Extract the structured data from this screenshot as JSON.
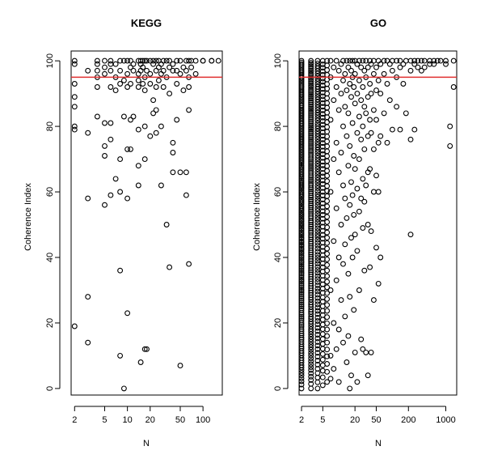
{
  "chart_data": [
    {
      "type": "scatter",
      "title": "KEGG",
      "xlabel": "N",
      "ylabel": "Coherence Index",
      "x_scale": "log",
      "xlim": [
        1.8,
        180
      ],
      "ylim": [
        -2,
        103
      ],
      "x_ticks": [
        2,
        5,
        10,
        20,
        50,
        100
      ],
      "y_ticks": [
        0,
        20,
        40,
        60,
        80,
        100
      ],
      "grid": false,
      "threshold_line": {
        "y": 95,
        "color": "#e03030"
      },
      "points": [
        [
          2,
          100
        ],
        [
          2,
          99
        ],
        [
          2,
          93
        ],
        [
          2,
          89
        ],
        [
          2,
          86
        ],
        [
          2,
          80
        ],
        [
          2,
          79
        ],
        [
          2,
          19
        ],
        [
          3,
          97
        ],
        [
          3,
          78
        ],
        [
          3,
          58
        ],
        [
          3,
          28
        ],
        [
          3,
          14
        ],
        [
          4,
          100
        ],
        [
          4,
          99
        ],
        [
          4,
          97
        ],
        [
          4,
          95
        ],
        [
          4,
          92
        ],
        [
          4,
          83
        ],
        [
          5,
          100
        ],
        [
          5,
          98
        ],
        [
          5,
          96
        ],
        [
          5,
          81
        ],
        [
          5,
          74
        ],
        [
          5,
          71
        ],
        [
          5,
          56
        ],
        [
          6,
          100
        ],
        [
          6,
          99
        ],
        [
          6,
          97
        ],
        [
          6,
          92
        ],
        [
          6,
          81
        ],
        [
          6,
          76
        ],
        [
          6,
          59
        ],
        [
          7,
          99
        ],
        [
          7,
          95
        ],
        [
          7,
          91
        ],
        [
          7,
          64
        ],
        [
          8,
          100
        ],
        [
          8,
          97
        ],
        [
          8,
          93
        ],
        [
          8,
          70
        ],
        [
          8,
          60
        ],
        [
          8,
          36
        ],
        [
          8,
          10
        ],
        [
          9,
          100
        ],
        [
          9,
          94
        ],
        [
          9,
          83
        ],
        [
          9,
          0
        ],
        [
          10,
          100
        ],
        [
          10,
          96
        ],
        [
          10,
          92
        ],
        [
          10,
          73
        ],
        [
          10,
          58
        ],
        [
          10,
          23
        ],
        [
          11,
          100
        ],
        [
          11,
          98
        ],
        [
          11,
          93
        ],
        [
          11,
          82
        ],
        [
          11,
          73
        ],
        [
          12,
          99
        ],
        [
          12,
          97
        ],
        [
          12,
          83
        ],
        [
          14,
          100
        ],
        [
          14,
          96
        ],
        [
          14,
          94
        ],
        [
          14,
          92
        ],
        [
          14,
          79
        ],
        [
          14,
          68
        ],
        [
          14,
          62
        ],
        [
          15,
          100
        ],
        [
          15,
          99
        ],
        [
          15,
          97
        ],
        [
          15,
          8
        ],
        [
          16,
          100
        ],
        [
          16,
          98
        ],
        [
          16,
          93
        ],
        [
          17,
          100
        ],
        [
          17,
          95
        ],
        [
          17,
          91
        ],
        [
          17,
          80
        ],
        [
          17,
          70
        ],
        [
          17,
          12
        ],
        [
          18,
          100
        ],
        [
          18,
          97
        ],
        [
          18,
          12
        ],
        [
          20,
          100
        ],
        [
          20,
          96
        ],
        [
          20,
          93
        ],
        [
          20,
          77
        ],
        [
          22,
          100
        ],
        [
          22,
          99
        ],
        [
          22,
          88
        ],
        [
          22,
          84
        ],
        [
          24,
          100
        ],
        [
          24,
          97
        ],
        [
          24,
          92
        ],
        [
          24,
          85
        ],
        [
          24,
          78
        ],
        [
          26,
          100
        ],
        [
          26,
          98
        ],
        [
          26,
          94
        ],
        [
          28,
          99
        ],
        [
          28,
          96
        ],
        [
          28,
          80
        ],
        [
          28,
          62
        ],
        [
          30,
          100
        ],
        [
          30,
          97
        ],
        [
          30,
          92
        ],
        [
          33,
          100
        ],
        [
          33,
          95
        ],
        [
          33,
          50
        ],
        [
          36,
          100
        ],
        [
          36,
          98
        ],
        [
          36,
          90
        ],
        [
          36,
          37
        ],
        [
          40,
          99
        ],
        [
          40,
          97
        ],
        [
          40,
          75
        ],
        [
          40,
          72
        ],
        [
          40,
          66
        ],
        [
          45,
          100
        ],
        [
          45,
          97
        ],
        [
          45,
          93
        ],
        [
          45,
          82
        ],
        [
          50,
          100
        ],
        [
          50,
          96
        ],
        [
          50,
          66
        ],
        [
          50,
          7
        ],
        [
          55,
          98
        ],
        [
          55,
          91
        ],
        [
          60,
          100
        ],
        [
          60,
          97
        ],
        [
          60,
          66
        ],
        [
          60,
          59
        ],
        [
          65,
          100
        ],
        [
          65,
          95
        ],
        [
          65,
          92
        ],
        [
          65,
          85
        ],
        [
          65,
          38
        ],
        [
          70,
          100
        ],
        [
          70,
          98
        ],
        [
          80,
          100
        ],
        [
          80,
          96
        ],
        [
          100,
          100
        ],
        [
          100,
          100
        ],
        [
          130,
          100
        ],
        [
          130,
          100
        ],
        [
          160,
          100
        ]
      ]
    },
    {
      "type": "scatter",
      "title": "GO",
      "xlabel": "N",
      "ylabel": "Coherence Index",
      "x_scale": "log",
      "xlim": [
        1.8,
        1600
      ],
      "ylim": [
        -2,
        103
      ],
      "x_ticks": [
        2,
        5,
        20,
        50,
        200,
        1000
      ],
      "y_ticks": [
        0,
        20,
        40,
        60,
        80,
        100
      ],
      "grid": false,
      "threshold_line": {
        "y": 95,
        "color": "#e03030"
      },
      "dense_columns": [
        {
          "x": 2,
          "ymin": 0,
          "ymax": 100,
          "count": 180
        },
        {
          "x": 3,
          "ymin": 0,
          "ymax": 100,
          "count": 150
        },
        {
          "x": 4,
          "ymin": 0,
          "ymax": 100,
          "count": 110
        },
        {
          "x": 5,
          "ymin": 1,
          "ymax": 100,
          "count": 80
        },
        {
          "x": 6,
          "ymin": 2,
          "ymax": 100,
          "count": 60
        }
      ],
      "points": [
        [
          7,
          100
        ],
        [
          7,
          95
        ],
        [
          7,
          82
        ],
        [
          7,
          60
        ],
        [
          7,
          30
        ],
        [
          7,
          10
        ],
        [
          7,
          3
        ],
        [
          8,
          98
        ],
        [
          8,
          88
        ],
        [
          8,
          70
        ],
        [
          8,
          45
        ],
        [
          8,
          20
        ],
        [
          8,
          6
        ],
        [
          9,
          100
        ],
        [
          9,
          92
        ],
        [
          9,
          75
        ],
        [
          9,
          55
        ],
        [
          9,
          33
        ],
        [
          9,
          12
        ],
        [
          10,
          97
        ],
        [
          10,
          85
        ],
        [
          10,
          66
        ],
        [
          10,
          40
        ],
        [
          10,
          18
        ],
        [
          10,
          2
        ],
        [
          11,
          99
        ],
        [
          11,
          90
        ],
        [
          11,
          72
        ],
        [
          11,
          50
        ],
        [
          11,
          27
        ],
        [
          12,
          100
        ],
        [
          12,
          94
        ],
        [
          12,
          80
        ],
        [
          12,
          62
        ],
        [
          12,
          38
        ],
        [
          12,
          14
        ],
        [
          13,
          96
        ],
        [
          13,
          86
        ],
        [
          13,
          58
        ],
        [
          13,
          44
        ],
        [
          13,
          22
        ],
        [
          14,
          100
        ],
        [
          14,
          91
        ],
        [
          14,
          77
        ],
        [
          14,
          52
        ],
        [
          14,
          8
        ],
        [
          15,
          98
        ],
        [
          15,
          84
        ],
        [
          15,
          68
        ],
        [
          15,
          35
        ],
        [
          15,
          16
        ],
        [
          16,
          100
        ],
        [
          16,
          93
        ],
        [
          16,
          74
        ],
        [
          16,
          56
        ],
        [
          16,
          28
        ],
        [
          16,
          0
        ],
        [
          17,
          97
        ],
        [
          17,
          89
        ],
        [
          17,
          63
        ],
        [
          17,
          46
        ],
        [
          17,
          4
        ],
        [
          18,
          100
        ],
        [
          18,
          95
        ],
        [
          18,
          81
        ],
        [
          18,
          59
        ],
        [
          18,
          40
        ],
        [
          19,
          92
        ],
        [
          19,
          71
        ],
        [
          19,
          53
        ],
        [
          19,
          24
        ],
        [
          20,
          100
        ],
        [
          20,
          96
        ],
        [
          20,
          87
        ],
        [
          20,
          67
        ],
        [
          20,
          47
        ],
        [
          20,
          11
        ],
        [
          22,
          99
        ],
        [
          22,
          90
        ],
        [
          22,
          78
        ],
        [
          22,
          61
        ],
        [
          22,
          42
        ],
        [
          22,
          2
        ],
        [
          24,
          100
        ],
        [
          24,
          94
        ],
        [
          24,
          83
        ],
        [
          24,
          70
        ],
        [
          24,
          54
        ],
        [
          24,
          30
        ],
        [
          26,
          98
        ],
        [
          26,
          88
        ],
        [
          26,
          76
        ],
        [
          26,
          58
        ],
        [
          26,
          15
        ],
        [
          28,
          100
        ],
        [
          28,
          92
        ],
        [
          28,
          80
        ],
        [
          28,
          64
        ],
        [
          28,
          49
        ],
        [
          28,
          12
        ],
        [
          30,
          97
        ],
        [
          30,
          86
        ],
        [
          30,
          73
        ],
        [
          30,
          57
        ],
        [
          30,
          36
        ],
        [
          32,
          100
        ],
        [
          32,
          95
        ],
        [
          32,
          84
        ],
        [
          32,
          62
        ],
        [
          32,
          11
        ],
        [
          35,
          98
        ],
        [
          35,
          89
        ],
        [
          35,
          77
        ],
        [
          35,
          66
        ],
        [
          35,
          50
        ],
        [
          35,
          4
        ],
        [
          38,
          100
        ],
        [
          38,
          93
        ],
        [
          38,
          82
        ],
        [
          38,
          67
        ],
        [
          38,
          37
        ],
        [
          40,
          99
        ],
        [
          40,
          90
        ],
        [
          40,
          78
        ],
        [
          40,
          48
        ],
        [
          40,
          11
        ],
        [
          45,
          100
        ],
        [
          45,
          96
        ],
        [
          45,
          85
        ],
        [
          45,
          73
        ],
        [
          45,
          60
        ],
        [
          45,
          27
        ],
        [
          50,
          98
        ],
        [
          50,
          91
        ],
        [
          50,
          82
        ],
        [
          50,
          65
        ],
        [
          50,
          43
        ],
        [
          55,
          100
        ],
        [
          55,
          94
        ],
        [
          55,
          75
        ],
        [
          55,
          60
        ],
        [
          55,
          32
        ],
        [
          60,
          99
        ],
        [
          60,
          90
        ],
        [
          60,
          77
        ],
        [
          60,
          40
        ],
        [
          70,
          100
        ],
        [
          70,
          96
        ],
        [
          70,
          84
        ],
        [
          80,
          100
        ],
        [
          80,
          93
        ],
        [
          80,
          75
        ],
        [
          90,
          99
        ],
        [
          90,
          88
        ],
        [
          100,
          100
        ],
        [
          100,
          97
        ],
        [
          100,
          79
        ],
        [
          120,
          100
        ],
        [
          120,
          95
        ],
        [
          120,
          86
        ],
        [
          140,
          100
        ],
        [
          140,
          98
        ],
        [
          140,
          79
        ],
        [
          160,
          99
        ],
        [
          160,
          93
        ],
        [
          180,
          100
        ],
        [
          180,
          84
        ],
        [
          220,
          100
        ],
        [
          220,
          97
        ],
        [
          220,
          76
        ],
        [
          220,
          47
        ],
        [
          260,
          100
        ],
        [
          260,
          99
        ],
        [
          260,
          79
        ],
        [
          300,
          100
        ],
        [
          300,
          98
        ],
        [
          350,
          100
        ],
        [
          350,
          97
        ],
        [
          400,
          100
        ],
        [
          400,
          98
        ],
        [
          500,
          100
        ],
        [
          500,
          99
        ],
        [
          600,
          100
        ],
        [
          600,
          99
        ],
        [
          700,
          100
        ],
        [
          800,
          100
        ],
        [
          1000,
          100
        ],
        [
          1000,
          99
        ],
        [
          1200,
          80
        ],
        [
          1200,
          74
        ],
        [
          1400,
          100
        ],
        [
          1400,
          92
        ]
      ]
    }
  ]
}
